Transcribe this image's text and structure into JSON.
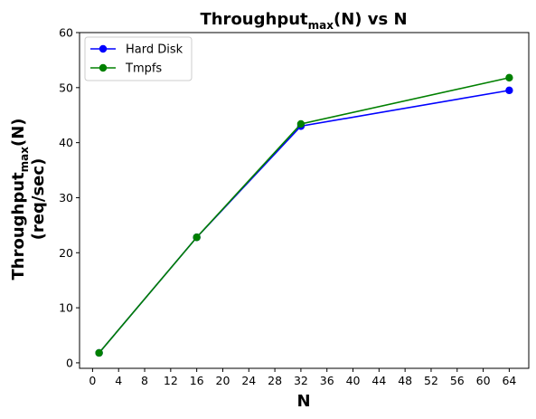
{
  "chart_data": {
    "type": "line",
    "title": {
      "main": "Throughput",
      "sub": "max",
      "rest": "(N) vs N"
    },
    "xlabel": "N",
    "ylabel": {
      "main": "Throughput",
      "sub": "max",
      "rest": "(N)",
      "line2": "(req/sec)"
    },
    "x": [
      1,
      16,
      32,
      64
    ],
    "xlim": [
      -2,
      67
    ],
    "ylim": [
      -1,
      60
    ],
    "xticks": [
      0,
      4,
      8,
      12,
      16,
      20,
      24,
      28,
      32,
      36,
      40,
      44,
      48,
      52,
      56,
      60,
      64
    ],
    "yticks": [
      0,
      10,
      20,
      30,
      40,
      50,
      60
    ],
    "grid": false,
    "legend_position": "top-left",
    "series": [
      {
        "name": "Hard Disk",
        "color": "#0000ff",
        "values": [
          1.8,
          22.8,
          43.0,
          49.5
        ]
      },
      {
        "name": "Tmpfs",
        "color": "#008000",
        "values": [
          1.8,
          22.8,
          43.4,
          51.8
        ]
      }
    ]
  }
}
